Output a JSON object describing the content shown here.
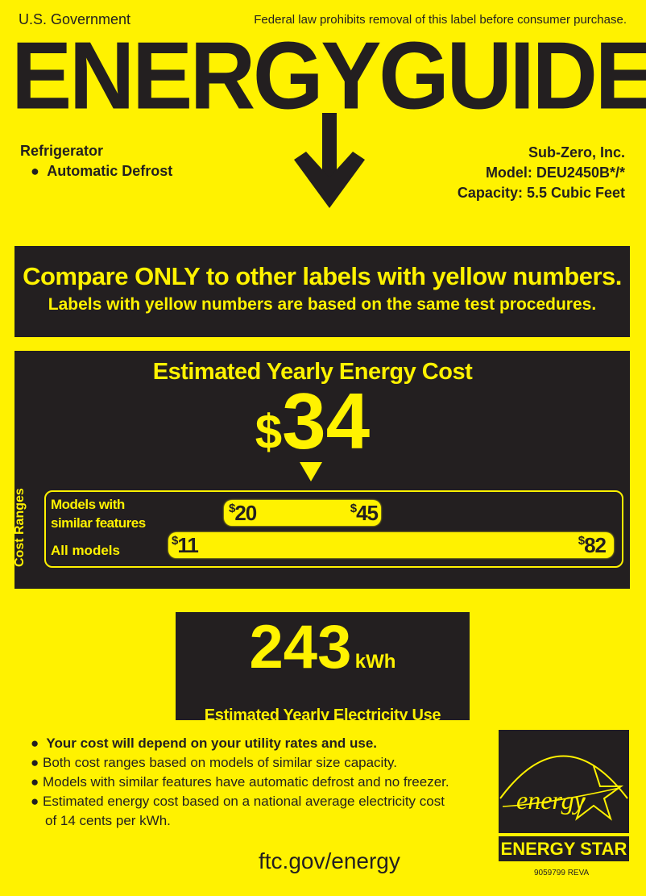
{
  "header": {
    "left": "U.S. Government",
    "right": "Federal law prohibits removal of this label before consumer purchase.",
    "title": "ENERGYGUIDE"
  },
  "product": {
    "type": "Refrigerator",
    "feature": "Automatic Defrost",
    "manufacturer": "Sub-Zero, Inc.",
    "model": "Model: DEU2450B*/*",
    "capacity": "Capacity: 5.5 Cubic Feet"
  },
  "compare": {
    "line1": "Compare ONLY to other labels with yellow numbers.",
    "line2": "Labels with yellow numbers are based on the same test procedures."
  },
  "cost": {
    "heading": "Estimated Yearly Energy Cost",
    "currency": "$",
    "value": "34",
    "ranges_label": "Cost Ranges",
    "similar_label_1": "Models with",
    "similar_label_2": "similar features",
    "similar_min": "20",
    "similar_max": "45",
    "all_label": "All models",
    "all_min": "11",
    "all_max": "82"
  },
  "electricity": {
    "value": "243",
    "unit": "kWh",
    "label": "Estimated Yearly Electricity Use"
  },
  "notes": [
    "Your cost will depend on your utility rates and use.",
    "Both cost ranges based on models of similar size capacity.",
    "Models with similar features have automatic defrost and no freezer.",
    "Estimated energy cost based on a national average electricity cost",
    "of 14 cents per kWh."
  ],
  "footer": {
    "url": "ftc.gov/energy",
    "code": "9059799 REVA"
  },
  "energy_star": {
    "script": "energy",
    "label": "ENERGY STAR",
    "icon": "energy-star-logo"
  },
  "colors": {
    "yellow": "#fff200",
    "dark": "#231f20"
  }
}
